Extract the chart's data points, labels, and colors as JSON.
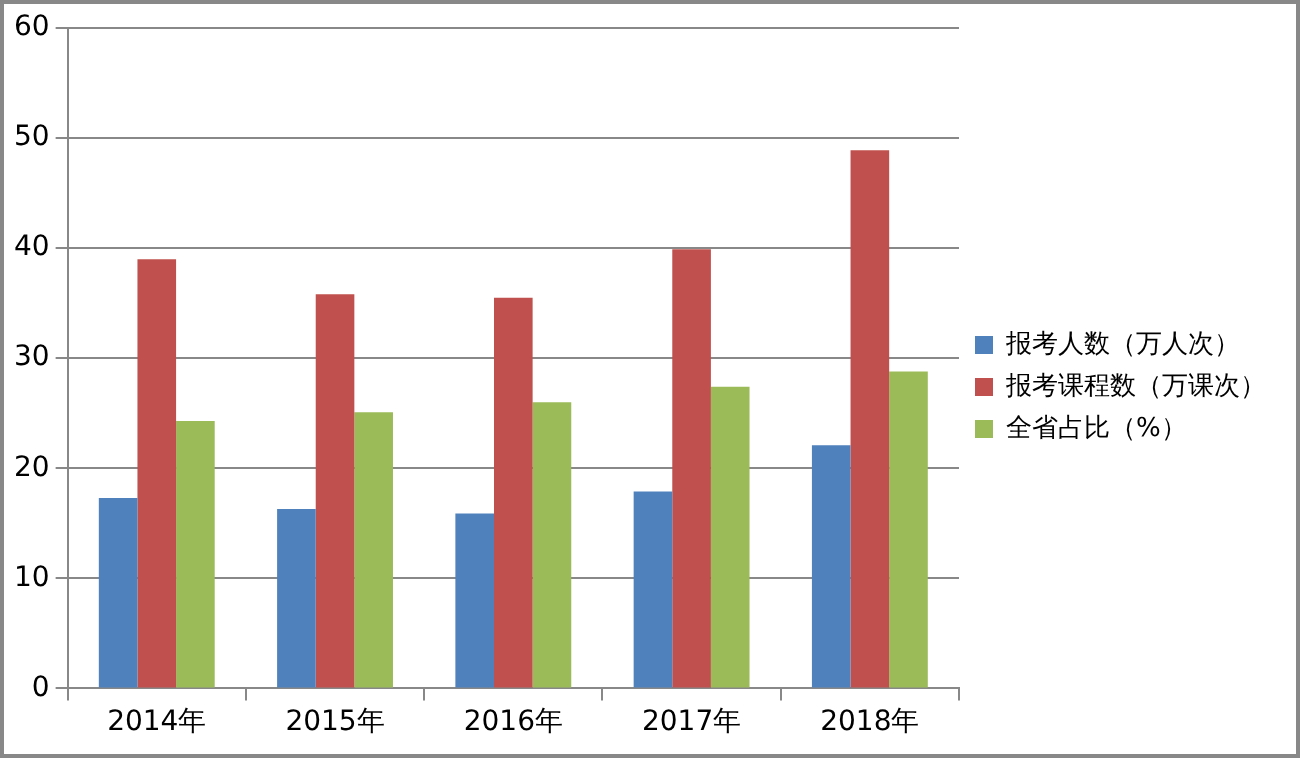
{
  "chart_data": {
    "type": "bar",
    "categories": [
      "2014年",
      "2015年",
      "2016年",
      "2017年",
      "2018年"
    ],
    "series": [
      {
        "name": "报考人数（万人次）",
        "color": "#4f81bd",
        "values": [
          17.3,
          16.3,
          15.9,
          17.9,
          22.1
        ]
      },
      {
        "name": "报考课程数（万课次）",
        "color": "#c0504d",
        "values": [
          39.0,
          35.8,
          35.5,
          39.9,
          48.9
        ]
      },
      {
        "name": "全省占比（%）",
        "color": "#9bbb59",
        "values": [
          24.3,
          25.1,
          26.0,
          27.4,
          28.8
        ]
      }
    ],
    "ylim": [
      0,
      60
    ],
    "yticks": [
      0,
      10,
      20,
      30,
      40,
      50,
      60
    ],
    "grid": "y",
    "legend": "right"
  }
}
